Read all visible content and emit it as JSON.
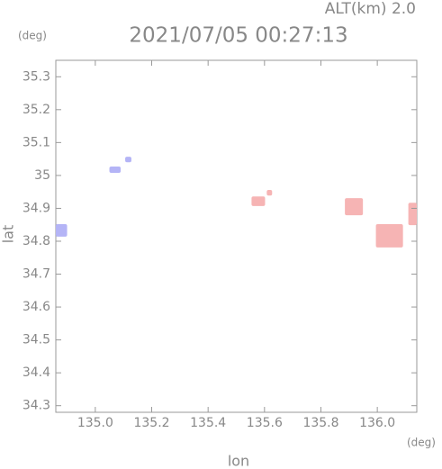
{
  "chart_data": {
    "type": "map",
    "title": "2021/07/05 00:27:13",
    "altitude": "ALT(km) 2.0",
    "x_unit": "(deg)",
    "y_unit": "(deg)",
    "x_label": "lon",
    "y_label": "lat",
    "xlim": [
      134.86,
      136.14
    ],
    "ylim": [
      34.28,
      35.35
    ],
    "xticks": [
      {
        "value": 135,
        "label": "135.0"
      },
      135.2,
      135.4,
      135.6,
      135.8,
      {
        "value": 136,
        "label": "136.0"
      }
    ],
    "yticks": [
      34.3,
      34.4,
      34.5,
      34.6,
      34.7,
      34.8,
      34.9,
      35.0,
      35.1,
      35.2,
      35.3
    ],
    "patches": [
      {
        "lon": [
          134.86,
          134.9
        ],
        "lat": [
          34.814,
          34.852
        ],
        "color": "#b4b4f6"
      },
      {
        "lon": [
          135.05,
          135.09
        ],
        "lat": [
          35.008,
          35.027
        ],
        "color": "#b4b4f6"
      },
      {
        "lon": [
          135.106,
          135.128
        ],
        "lat": [
          35.04,
          35.057
        ],
        "color": "#b4b4f6"
      },
      {
        "lon": [
          135.554,
          135.602
        ],
        "lat": [
          34.907,
          34.936
        ],
        "color": "#f6b4b4"
      },
      {
        "lon": [
          135.608,
          135.627
        ],
        "lat": [
          34.939,
          34.956
        ],
        "color": "#f6b4b4"
      },
      {
        "lon": [
          135.885,
          135.949
        ],
        "lat": [
          34.879,
          34.931
        ],
        "color": "#f6b4b4"
      },
      {
        "lon": [
          135.995,
          136.091
        ],
        "lat": [
          34.781,
          34.852
        ],
        "color": "#f6b4b4"
      },
      {
        "lon": [
          136.11,
          136.14
        ],
        "lat": [
          34.849,
          34.917
        ],
        "color": "#f6b4b4"
      }
    ]
  }
}
